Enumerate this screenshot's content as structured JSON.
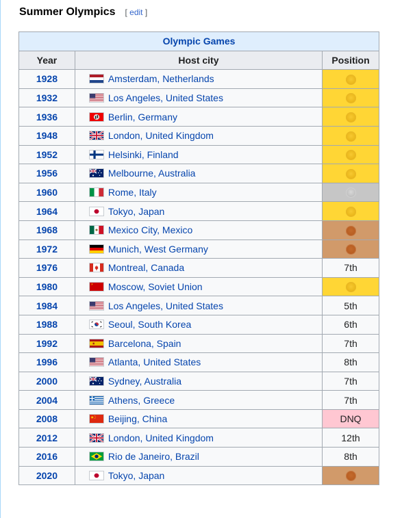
{
  "section": {
    "title": "Summer Olympics",
    "edit_open": "[ ",
    "edit_label": "edit",
    "edit_close": " ]"
  },
  "table": {
    "caption": "Olympic Games",
    "headers": {
      "year": "Year",
      "host": "Host city",
      "position": "Position"
    },
    "rows": [
      {
        "year": "1928",
        "host": "Amsterdam, Netherlands",
        "flag": "nl",
        "position": "",
        "medal": "gold"
      },
      {
        "year": "1932",
        "host": "Los Angeles, United States",
        "flag": "us",
        "position": "",
        "medal": "gold"
      },
      {
        "year": "1936",
        "host": "Berlin, Germany",
        "flag": "de1936",
        "position": "",
        "medal": "gold"
      },
      {
        "year": "1948",
        "host": "London, United Kingdom",
        "flag": "gb",
        "position": "",
        "medal": "gold"
      },
      {
        "year": "1952",
        "host": "Helsinki, Finland",
        "flag": "fi",
        "position": "",
        "medal": "gold"
      },
      {
        "year": "1956",
        "host": "Melbourne, Australia",
        "flag": "au",
        "position": "",
        "medal": "gold"
      },
      {
        "year": "1960",
        "host": "Rome, Italy",
        "flag": "it",
        "position": "",
        "medal": "silver"
      },
      {
        "year": "1964",
        "host": "Tokyo, Japan",
        "flag": "jp",
        "position": "",
        "medal": "gold"
      },
      {
        "year": "1968",
        "host": "Mexico City, Mexico",
        "flag": "mx",
        "position": "",
        "medal": "bronze"
      },
      {
        "year": "1972",
        "host": "Munich, West Germany",
        "flag": "de",
        "position": "",
        "medal": "bronze"
      },
      {
        "year": "1976",
        "host": "Montreal, Canada",
        "flag": "ca",
        "position": "7th",
        "medal": ""
      },
      {
        "year": "1980",
        "host": "Moscow, Soviet Union",
        "flag": "su",
        "position": "",
        "medal": "gold"
      },
      {
        "year": "1984",
        "host": "Los Angeles, United States",
        "flag": "us",
        "position": "5th",
        "medal": ""
      },
      {
        "year": "1988",
        "host": "Seoul, South Korea",
        "flag": "kr",
        "position": "6th",
        "medal": ""
      },
      {
        "year": "1992",
        "host": "Barcelona, Spain",
        "flag": "es",
        "position": "7th",
        "medal": ""
      },
      {
        "year": "1996",
        "host": "Atlanta, United States",
        "flag": "us",
        "position": "8th",
        "medal": ""
      },
      {
        "year": "2000",
        "host": "Sydney, Australia",
        "flag": "au",
        "position": "7th",
        "medal": ""
      },
      {
        "year": "2004",
        "host": "Athens, Greece",
        "flag": "gr",
        "position": "7th",
        "medal": ""
      },
      {
        "year": "2008",
        "host": "Beijing, China",
        "flag": "cn",
        "position": "DNQ",
        "medal": "dnq"
      },
      {
        "year": "2012",
        "host": "London, United Kingdom",
        "flag": "gb",
        "position": "12th",
        "medal": ""
      },
      {
        "year": "2016",
        "host": "Rio de Janeiro, Brazil",
        "flag": "br",
        "position": "8th",
        "medal": ""
      },
      {
        "year": "2020",
        "host": "Tokyo, Japan",
        "flag": "jp",
        "position": "",
        "medal": "bronze"
      }
    ]
  },
  "colors": {
    "gold": "#ffd635",
    "silver": "#c6c6c6",
    "bronze": "#d19a6a",
    "dnq": "#ffc7d2",
    "link": "#0645ad",
    "caption_bg": "#dfeefd",
    "header_bg": "#eaecf0"
  }
}
